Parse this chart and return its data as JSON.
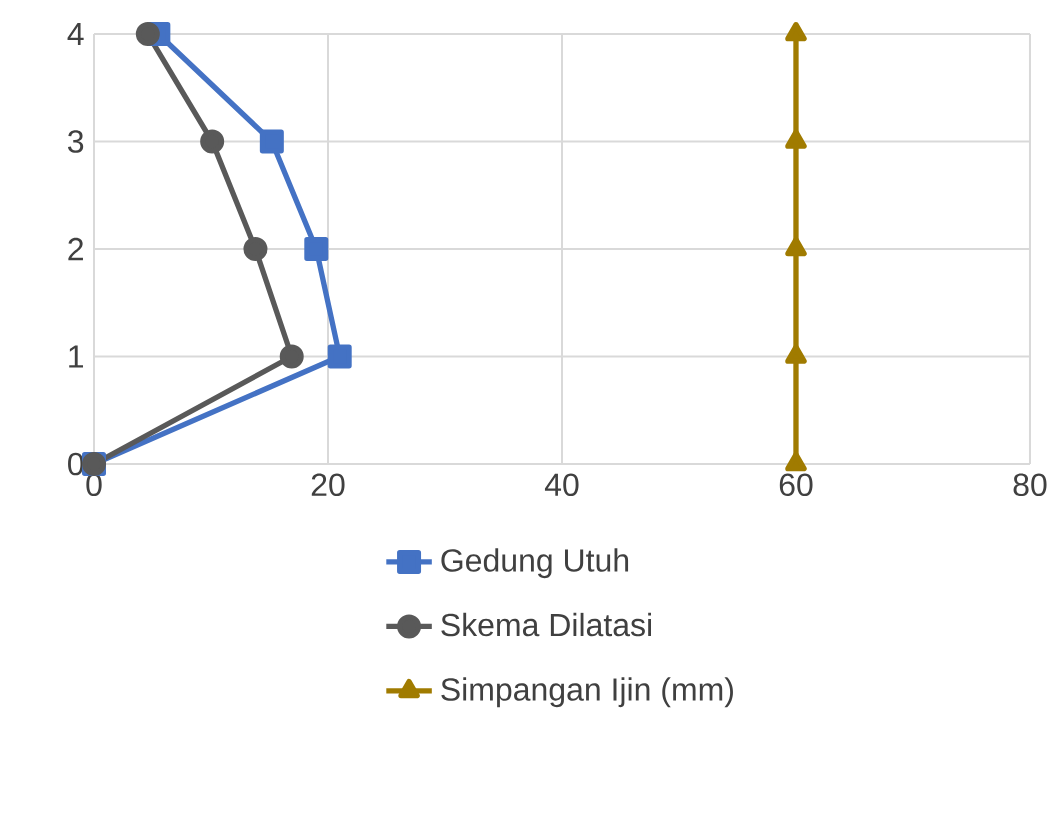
{
  "chart_data": {
    "type": "line",
    "xlim": [
      0,
      80
    ],
    "xticks": [
      0,
      20,
      40,
      60,
      80
    ],
    "ylim": [
      0,
      4
    ],
    "yticks": [
      0,
      1,
      2,
      3,
      4
    ],
    "grid": true,
    "legend": "bottom",
    "series": [
      {
        "name": "Gedung Utuh",
        "color": "#4472c4",
        "marker": "square",
        "x": [
          0,
          21,
          19,
          15.2,
          5.5
        ],
        "values": [
          0,
          1,
          2,
          3,
          4
        ]
      },
      {
        "name": "Skema Dilatasi",
        "color": "#595959",
        "marker": "circle",
        "x": [
          0,
          16.9,
          13.8,
          10.1,
          4.6
        ],
        "values": [
          0,
          1,
          2,
          3,
          4
        ]
      },
      {
        "name": "Simpangan Ijin (mm)",
        "color": "#a07b00",
        "marker": "triangle",
        "x": [
          60,
          60,
          60,
          60,
          60
        ],
        "values": [
          0,
          1,
          2,
          3,
          4
        ]
      }
    ]
  }
}
